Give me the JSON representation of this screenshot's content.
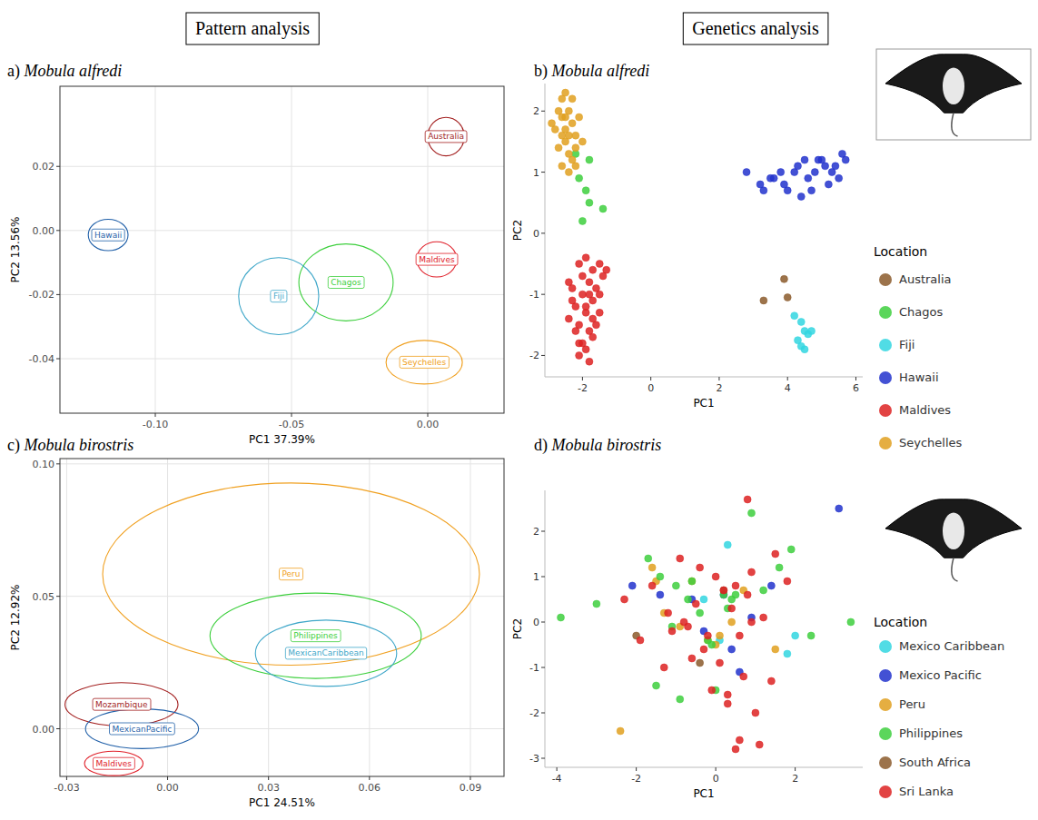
{
  "headers": [
    "Pattern analysis",
    "Genetics analysis"
  ],
  "chart_data": [
    {
      "panel": "a)",
      "title": "Mobula alfredi",
      "type": "ellipse",
      "x_label": "PC1 37.39%",
      "y_label": "PC2 13.56%",
      "xlim": [
        -0.135,
        0.028
      ],
      "ylim": [
        -0.057,
        0.045
      ],
      "xticks": [
        {
          "value": -0.1,
          "label": "-0.10"
        },
        -0.05,
        {
          "value": 0,
          "label": "0.00"
        }
      ],
      "yticks": [
        -0.04,
        -0.02,
        {
          "value": 0,
          "label": "0.00"
        },
        0.02
      ],
      "grid": true,
      "series": [
        {
          "name": "Australia",
          "color": "#a31f1f",
          "x": 0.0067,
          "y": 0.0293,
          "rx": 0.0067,
          "ry": 0.006
        },
        {
          "name": "Hawaii",
          "color": "#1f5fa8",
          "x": -0.1173,
          "y": -0.0014,
          "rx": 0.0073,
          "ry": 0.0049
        },
        {
          "name": "Maldives",
          "color": "#e0202a",
          "x": 0.0033,
          "y": -0.009,
          "rx": 0.0073,
          "ry": 0.0055
        },
        {
          "name": "Chagos",
          "color": "#3ccf3c",
          "x": -0.03,
          "y": -0.0162,
          "rx": 0.0173,
          "ry": 0.012
        },
        {
          "name": "Fiji",
          "color": "#3fa7c9",
          "x": -0.0547,
          "y": -0.0205,
          "rx": 0.0147,
          "ry": 0.012
        },
        {
          "name": "Seychelles",
          "color": "#f0a020",
          "x": -0.0013,
          "y": -0.0411,
          "rx": 0.014,
          "ry": 0.0068
        }
      ]
    },
    {
      "panel": "b)",
      "title": "Mobula alfredi",
      "type": "scatter",
      "x_label": "PC1",
      "y_label": "PC2",
      "legend_title": "Location",
      "legend": "right",
      "xlim": [
        -3.1,
        6.2
      ],
      "ylim": [
        -2.35,
        2.45
      ],
      "xticks": [
        -2,
        0,
        2,
        4,
        6
      ],
      "yticks": [
        -2,
        -1,
        0,
        1,
        2
      ],
      "grid": false,
      "series": [
        {
          "name": "Australia",
          "color": "#8b5a2b",
          "x": [
            3.3,
            3.9,
            4.0
          ],
          "y": [
            -1.1,
            -0.75,
            -1.05
          ]
        },
        {
          "name": "Chagos",
          "color": "#3ecf3e",
          "x": [
            -2.2,
            -1.8,
            -2.1,
            -1.9,
            -1.8,
            -1.4,
            -2.0
          ],
          "y": [
            1.3,
            1.2,
            0.9,
            0.7,
            0.5,
            0.4,
            0.2
          ]
        },
        {
          "name": "Fiji",
          "color": "#33d6e0",
          "x": [
            4.2,
            4.4,
            4.5,
            4.6,
            4.3,
            4.4,
            4.7,
            4.5
          ],
          "y": [
            -1.35,
            -1.45,
            -1.6,
            -1.65,
            -1.75,
            -1.85,
            -1.6,
            -1.9
          ]
        },
        {
          "name": "Hawaii",
          "color": "#2233cc",
          "x": [
            2.8,
            3.2,
            3.5,
            3.8,
            4.0,
            4.3,
            4.5,
            4.6,
            4.8,
            5.0,
            5.2,
            5.4,
            5.5,
            5.6,
            3.3,
            3.9,
            4.2,
            4.7,
            5.1,
            5.3,
            3.6,
            4.4,
            4.9,
            5.7
          ],
          "y": [
            1.0,
            0.8,
            0.9,
            1.0,
            0.7,
            1.1,
            1.2,
            0.9,
            1.0,
            1.2,
            0.8,
            1.1,
            0.9,
            1.3,
            0.7,
            0.8,
            1.0,
            0.7,
            1.1,
            1.0,
            0.9,
            0.6,
            1.2,
            1.2
          ]
        },
        {
          "name": "Maldives",
          "color": "#dd2222",
          "x": [
            -2.1,
            -1.9,
            -1.7,
            -1.5,
            -1.8,
            -2.3,
            -2.0,
            -1.6,
            -1.4,
            -2.2,
            -1.9,
            -1.7,
            -2.4,
            -2.1,
            -1.8,
            -1.5,
            -2.0,
            -1.7,
            -2.3,
            -1.9,
            -1.6,
            -2.1,
            -1.8,
            -2.2,
            -1.9,
            -1.5,
            -2.0,
            -1.7,
            -2.4,
            -1.8,
            -1.3,
            -2.1
          ],
          "y": [
            -0.5,
            -0.4,
            -0.6,
            -0.5,
            -0.8,
            -0.9,
            -1.0,
            -0.9,
            -0.7,
            -1.2,
            -1.3,
            -1.1,
            -1.4,
            -1.5,
            -1.6,
            -1.3,
            -1.8,
            -1.7,
            -1.1,
            -1.9,
            -1.5,
            -2.0,
            -2.1,
            -1.6,
            -1.2,
            -1.0,
            -0.7,
            -1.4,
            -0.8,
            -1.0,
            -0.6,
            -1.8
          ]
        },
        {
          "name": "Seychelles",
          "color": "#e0a020",
          "x": [
            -2.9,
            -2.7,
            -2.6,
            -2.5,
            -2.4,
            -2.8,
            -2.6,
            -2.3,
            -2.5,
            -2.7,
            -2.4,
            -2.2,
            -2.6,
            -2.3,
            -2.5,
            -2.1,
            -2.4,
            -2.2,
            -2.0,
            -2.3,
            -2.6,
            -2.4,
            -2.2,
            -2.5
          ],
          "y": [
            1.8,
            2.0,
            2.2,
            1.9,
            2.0,
            1.7,
            1.6,
            1.8,
            1.5,
            1.4,
            1.3,
            1.6,
            1.9,
            2.2,
            1.7,
            1.9,
            1.6,
            1.4,
            1.5,
            1.2,
            1.1,
            1.0,
            1.1,
            2.3
          ]
        }
      ]
    },
    {
      "panel": "c)",
      "title": "Mobula birostris",
      "type": "ellipse",
      "x_label": "PC1 24.51%",
      "y_label": "PC2 12.92%",
      "xlim": [
        -0.032,
        0.1
      ],
      "ylim": [
        -0.018,
        0.102
      ],
      "xticks": [
        -0.03,
        {
          "value": 0,
          "label": "0.00"
        },
        0.03,
        0.06,
        0.09
      ],
      "yticks": [
        {
          "value": 0,
          "label": "0.00"
        },
        0.05,
        {
          "value": 0.1,
          "label": "0.10"
        }
      ],
      "grid": true,
      "series": [
        {
          "name": "Peru",
          "color": "#f0a020",
          "x": 0.0367,
          "y": 0.0584,
          "rx": 0.056,
          "ry": 0.0344
        },
        {
          "name": "Philippines",
          "color": "#3ccf3c",
          "x": 0.044,
          "y": 0.0351,
          "rx": 0.0314,
          "ry": 0.0161
        },
        {
          "name": "MexicanCaribbean",
          "color": "#3fa7c9",
          "x": 0.0471,
          "y": 0.0285,
          "rx": 0.021,
          "ry": 0.0125
        },
        {
          "name": "Mozambique",
          "color": "#a31f1f",
          "x": -0.0137,
          "y": 0.0092,
          "rx": 0.0168,
          "ry": 0.0082
        },
        {
          "name": "MexicanPacific",
          "color": "#1f5fa8",
          "x": -0.0076,
          "y": 0.0,
          "rx": 0.0168,
          "ry": 0.0075
        },
        {
          "name": "Maldives",
          "color": "#e0202a",
          "x": -0.016,
          "y": -0.0131,
          "rx": 0.0087,
          "ry": 0.0046
        }
      ]
    },
    {
      "panel": "d)",
      "title": "Mobula birostris",
      "type": "scatter",
      "x_label": "PC1",
      "y_label": "PC2",
      "legend_title": "Location",
      "legend": "right",
      "xlim": [
        -4.3,
        3.7
      ],
      "ylim": [
        -3.2,
        2.9
      ],
      "xticks": [
        -4,
        -2,
        0,
        2
      ],
      "yticks": [
        -3,
        -2,
        -1,
        0,
        1,
        2
      ],
      "grid": false,
      "series": [
        {
          "name": "Mexico Caribbean",
          "color": "#33d6e0",
          "x": [
            0.3,
            1.8,
            2.0,
            0.1,
            -0.3
          ],
          "y": [
            1.7,
            -0.7,
            -0.3,
            -0.4,
            0.5
          ]
        },
        {
          "name": "Mexico Pacific",
          "color": "#2233cc",
          "x": [
            -2.1,
            -1.4,
            -0.3,
            0.2,
            0.6,
            0.9,
            1.4,
            3.1,
            -0.6,
            0.4
          ],
          "y": [
            0.8,
            0.6,
            -0.2,
            0.6,
            -1.1,
            0.1,
            0.8,
            2.5,
            0.5,
            -0.6
          ]
        },
        {
          "name": "Peru",
          "color": "#e0a020",
          "x": [
            -2.4,
            -1.6,
            -1.5,
            -0.9,
            -0.6,
            -0.2,
            0.1,
            0.4,
            1.5,
            0.0,
            -1.3,
            0.7
          ],
          "y": [
            -2.4,
            1.2,
            0.9,
            -0.1,
            0.9,
            -0.4,
            -0.3,
            0.0,
            -0.6,
            -0.5,
            0.2,
            0.7
          ]
        },
        {
          "name": "Philippines",
          "color": "#3ecf3e",
          "x": [
            -3.9,
            -3.0,
            -1.7,
            -1.4,
            -1.0,
            -0.7,
            -0.4,
            -0.1,
            0.2,
            0.5,
            0.9,
            1.6,
            1.9,
            2.4,
            3.4,
            -1.5,
            -0.9,
            -0.2,
            0.0,
            0.4,
            -1.1,
            -0.6,
            0.3,
            1.2
          ],
          "y": [
            0.1,
            0.4,
            1.4,
            1.0,
            0.8,
            0.5,
            0.2,
            -0.5,
            0.6,
            0.6,
            2.4,
            1.2,
            1.6,
            -0.3,
            0.0,
            -1.4,
            -1.7,
            -0.4,
            -1.5,
            0.5,
            -0.1,
            0.9,
            0.3,
            0.7
          ]
        },
        {
          "name": "South Africa",
          "color": "#8b5a2b",
          "x": [
            -2.0,
            -0.4,
            0.2
          ],
          "y": [
            -0.3,
            -0.9,
            0.7
          ]
        },
        {
          "name": "Sri Lanka",
          "color": "#dd2222",
          "x": [
            -2.3,
            -1.6,
            -1.1,
            -0.8,
            -0.5,
            -0.3,
            0.0,
            0.2,
            0.4,
            0.6,
            0.9,
            1.2,
            1.5,
            1.8,
            -1.9,
            -1.3,
            -0.6,
            -0.1,
            0.3,
            0.7,
            1.0,
            1.4,
            -0.9,
            -0.4,
            0.1,
            0.5,
            0.8,
            -1.2,
            -0.2,
            0.6,
            1.1,
            0.3,
            -0.7,
            0.9,
            0.8,
            0.5
          ],
          "y": [
            0.5,
            0.8,
            -0.2,
            0.0,
            0.4,
            -0.6,
            1.0,
            0.7,
            0.3,
            -0.3,
            1.1,
            0.1,
            1.5,
            0.9,
            -0.4,
            -1.0,
            -0.8,
            -1.5,
            -1.8,
            -1.2,
            -2.0,
            -1.3,
            1.4,
            1.2,
            -0.9,
            0.8,
            0.6,
            0.2,
            -0.3,
            -2.6,
            -2.7,
            -1.6,
            -0.1,
            0.0,
            2.7,
            -2.8
          ]
        }
      ]
    }
  ]
}
